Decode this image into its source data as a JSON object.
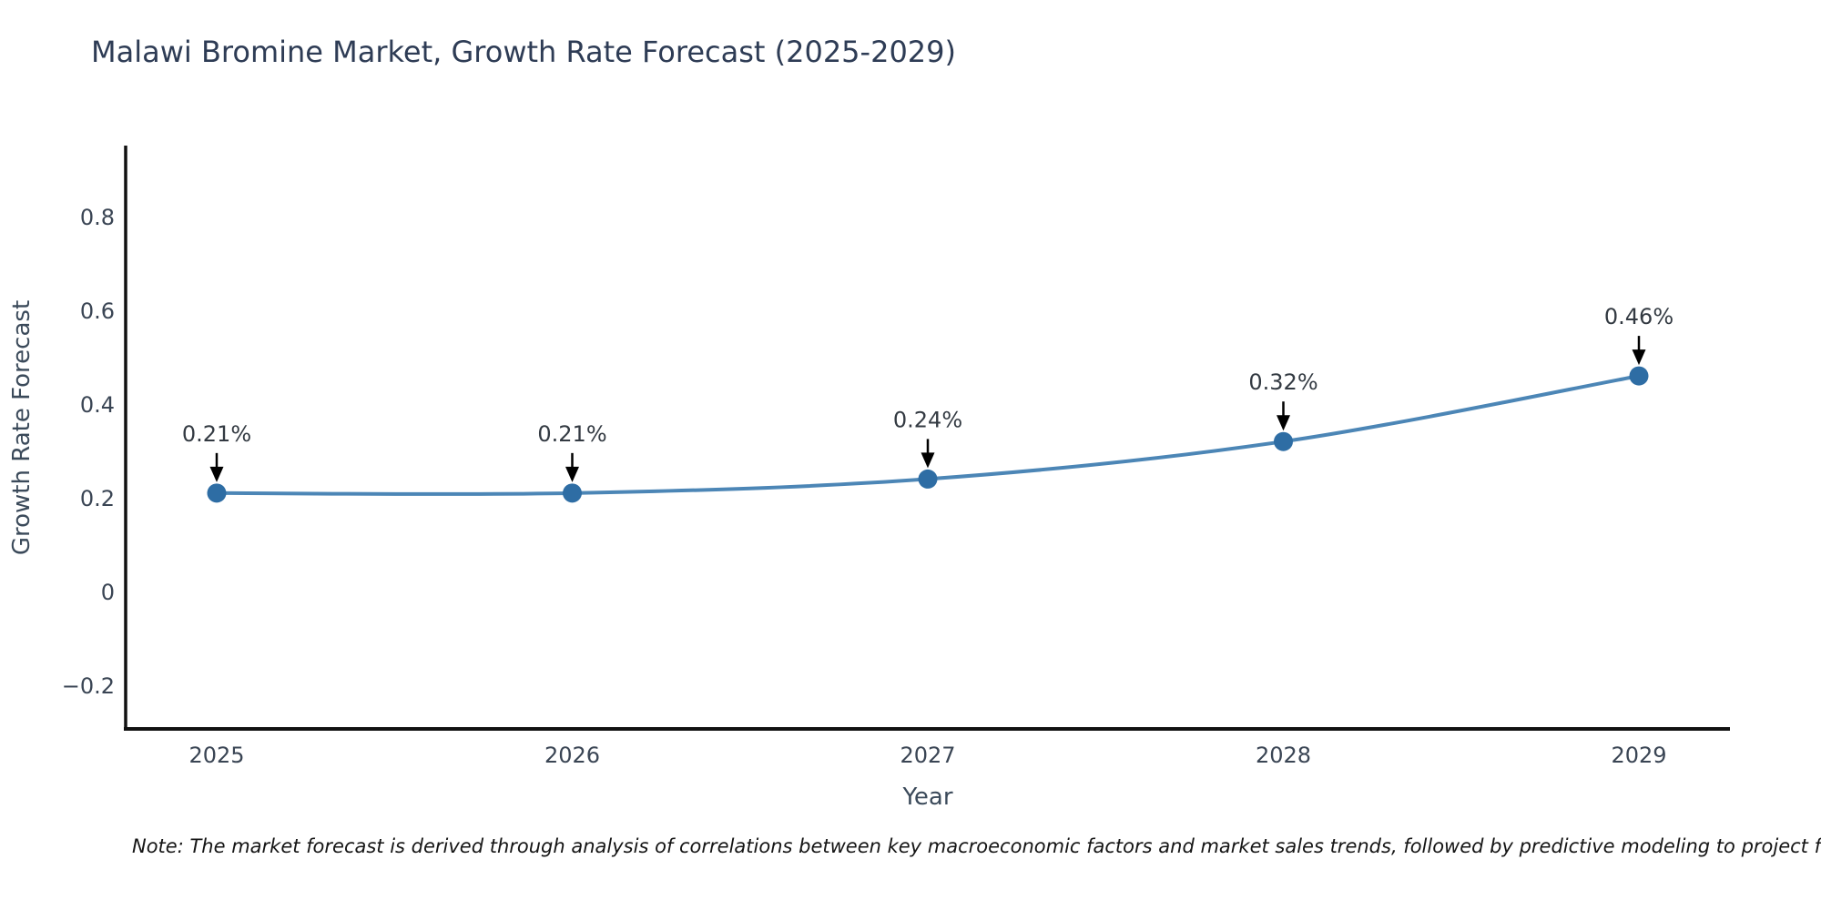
{
  "page": {
    "title": "Malawi Bromine Market, Growth Rate Forecast (2025-2029)",
    "note": "Note: The market forecast is derived through analysis of correlations between key macroeconomic factors and market sales trends, followed by predictive modeling to project future sa"
  },
  "chart_data": {
    "type": "line",
    "title": "Malawi Bromine Market, Growth Rate Forecast (2025-2029)",
    "xlabel": "Year",
    "ylabel": "Growth Rate Forecast",
    "x": [
      2025,
      2026,
      2027,
      2028,
      2029
    ],
    "x_tick_labels": [
      "2025",
      "2026",
      "2027",
      "2028",
      "2029"
    ],
    "series": [
      {
        "name": "Growth Rate Forecast",
        "values": [
          0.21,
          0.21,
          0.24,
          0.32,
          0.46
        ],
        "point_labels": [
          "0.21%",
          "0.21%",
          "0.24%",
          "0.32%",
          "0.46%"
        ]
      }
    ],
    "y_ticks": [
      0.8,
      0.6,
      0.4,
      0.2,
      0,
      -0.2
    ],
    "y_tick_labels": [
      "0.8",
      "0.6",
      "0.4",
      "0.2",
      "0",
      "−0.2"
    ],
    "ylim": [
      -0.29,
      0.95
    ],
    "xlim": [
      2024.74,
      2029.26
    ],
    "grid": false,
    "legend_position": "none",
    "annotation_style": "value label above point with downward black arrow",
    "colors": {
      "line": "#4c86b6",
      "marker": "#2e6da4",
      "axis": "#111111",
      "arrow": "#000000",
      "tick_label": "#3a4554",
      "axis_label": "#3b4a5a",
      "annotation_text": "#333a42",
      "title": "#2e3c55",
      "note": "#151515"
    }
  }
}
